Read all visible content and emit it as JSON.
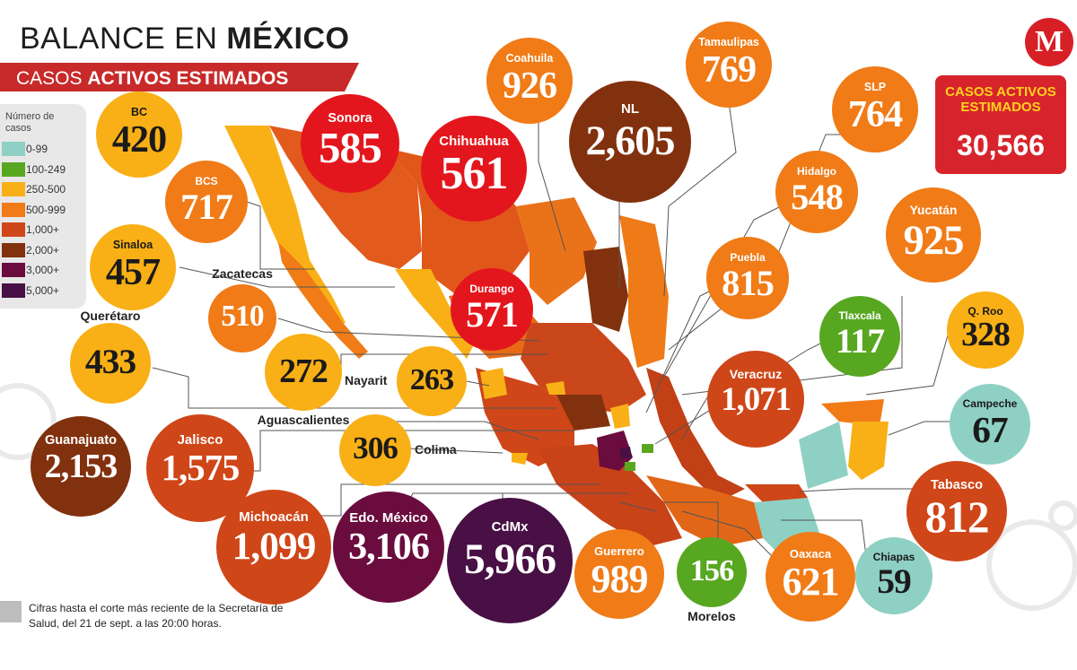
{
  "header": {
    "title_plain": "BALANCE EN ",
    "title_bold": "MÉXICO",
    "subtitle_plain": "CASOS ",
    "subtitle_bold": "ACTIVOS ESTIMADOS",
    "logo_letter": "M"
  },
  "total": {
    "label": "CASOS ACTIVOS ESTIMADOS",
    "value": "30,566"
  },
  "legend": {
    "title": "Número de casos",
    "items": [
      {
        "label": "0-99",
        "color": "#8fd0c4"
      },
      {
        "label": "100-249",
        "color": "#58a720"
      },
      {
        "label": "250-500",
        "color": "#f9b016"
      },
      {
        "label": "500-999",
        "color": "#f07b17"
      },
      {
        "label": "1,000+",
        "color": "#cf4618"
      },
      {
        "label": "2,000+",
        "color": "#82310e"
      },
      {
        "label": "3,000+",
        "color": "#6b0c3e"
      },
      {
        "label": "5,000+",
        "color": "#481044"
      }
    ]
  },
  "states": [
    {
      "name": "BC",
      "value": "420",
      "color": "#f9b016"
    },
    {
      "name": "BCS",
      "value": "717",
      "color": "#f07b17"
    },
    {
      "name": "Sinaloa",
      "value": "457",
      "color": "#f9b016"
    },
    {
      "name": "Sonora",
      "value": "585",
      "color": "#e4161d"
    },
    {
      "name": "Chihuahua",
      "value": "561",
      "color": "#e4161d"
    },
    {
      "name": "Coahuila",
      "value": "926",
      "color": "#f07b17"
    },
    {
      "name": "Tamaulipas",
      "value": "769",
      "color": "#f07b17"
    },
    {
      "name": "NL",
      "value": "2,605",
      "color": "#82310e"
    },
    {
      "name": "SLP",
      "value": "764",
      "color": "#f07b17"
    },
    {
      "name": "Hidalgo",
      "value": "548",
      "color": "#f07b17"
    },
    {
      "name": "Yucatán",
      "value": "925",
      "color": "#f07b17"
    },
    {
      "name": "Puebla",
      "value": "815",
      "color": "#f07b17"
    },
    {
      "name": "Durango",
      "value": "571",
      "color": "#e4161d"
    },
    {
      "name": "Zacatecas",
      "value": "510",
      "color": "#f07b17"
    },
    {
      "name": "Querétaro",
      "value": "433",
      "color": "#f9b016"
    },
    {
      "name": "Aguascalientes",
      "value": "272",
      "color": "#f9b016"
    },
    {
      "name": "Nayarit",
      "value": "263",
      "color": "#f9b016"
    },
    {
      "name": "Tlaxcala",
      "value": "117",
      "color": "#58a720"
    },
    {
      "name": "Q. Roo",
      "value": "328",
      "color": "#f9b016"
    },
    {
      "name": "Veracruz",
      "value": "1,071",
      "color": "#cf4618"
    },
    {
      "name": "Campeche",
      "value": "67",
      "color": "#8fd0c4"
    },
    {
      "name": "Guanajuato",
      "value": "2,153",
      "color": "#82310e"
    },
    {
      "name": "Jalisco",
      "value": "1,575",
      "color": "#cf4618"
    },
    {
      "name": "Colima",
      "value": "306",
      "color": "#f9b016"
    },
    {
      "name": "Tabasco",
      "value": "812",
      "color": "#cf4618"
    },
    {
      "name": "Michoacán",
      "value": "1,099",
      "color": "#cf4618"
    },
    {
      "name": "Edo. México",
      "value": "3,106",
      "color": "#6b0c3e"
    },
    {
      "name": "CdMx",
      "value": "5,966",
      "color": "#481044"
    },
    {
      "name": "Guerrero",
      "value": "989",
      "color": "#f07b17"
    },
    {
      "name": "Morelos",
      "value": "156",
      "color": "#58a720"
    },
    {
      "name": "Oaxaca",
      "value": "621",
      "color": "#f07b17"
    },
    {
      "name": "Chiapas",
      "value": "59",
      "color": "#8fd0c4"
    }
  ],
  "footnote": "Cifras hasta el corte más reciente de la Secretaría de Salud, del 21 de sept. a las 20:00 horas."
}
